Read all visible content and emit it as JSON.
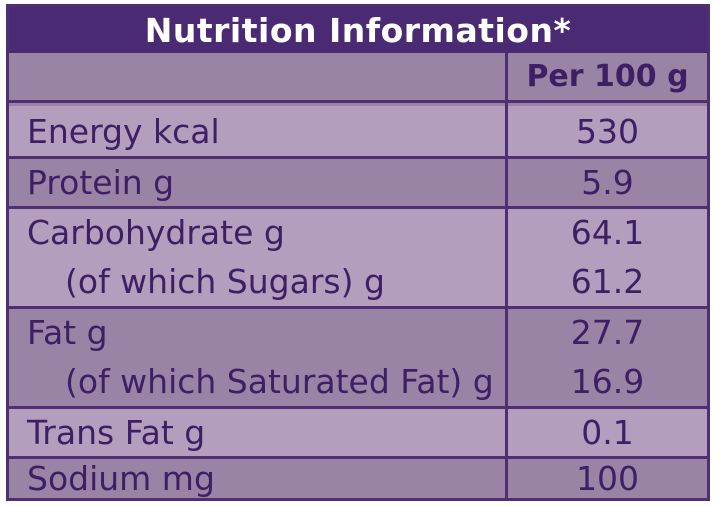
{
  "title": "Nutrition Information*",
  "column_header": "Per 100 g",
  "rows": [
    {
      "label": "Energy kcal",
      "value": "530"
    },
    {
      "label": "Protein g",
      "value": "5.9"
    },
    {
      "label": "Carbohydrate g",
      "value": "64.1"
    },
    {
      "label": "(of which Sugars) g",
      "value": "61.2"
    },
    {
      "label": "Fat g",
      "value": "27.7"
    },
    {
      "label": "(of which Saturated Fat) g",
      "value": "16.9"
    },
    {
      "label": "Trans Fat g",
      "value": "0.1"
    },
    {
      "label": "Sodium mg",
      "value": "100"
    }
  ],
  "colors": {
    "title_background": "#4a2a73",
    "panel_background": "#9a84a6",
    "stripe_background": "#b39fbd",
    "text": "#3d1f63",
    "title_text": "#ffffff"
  }
}
